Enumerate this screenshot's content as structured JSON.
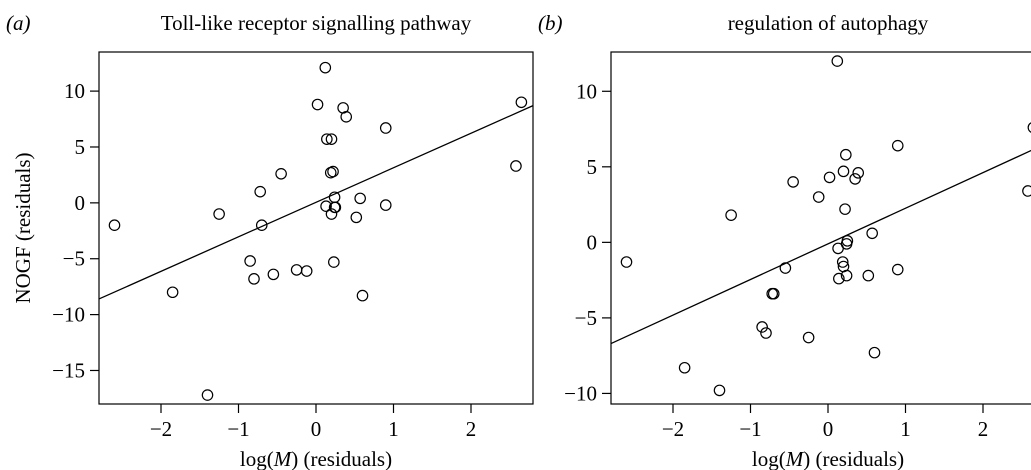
{
  "chart_data": [
    {
      "type": "scatter",
      "panel_label": "(a)",
      "title": "Toll-like receptor signalling pathway",
      "xlabel": "log(M) (residuals)",
      "ylabel": "NOGF (residuals)",
      "xlim": [
        -2.8,
        2.8
      ],
      "ylim": [
        -18,
        13.5
      ],
      "xticks": [
        -2,
        -1,
        0,
        1,
        2
      ],
      "yticks": [
        -15,
        -10,
        -5,
        0,
        5,
        10
      ],
      "grid": false,
      "points": [
        {
          "x": -2.6,
          "y": -2.0
        },
        {
          "x": -1.85,
          "y": -8.0
        },
        {
          "x": -1.4,
          "y": -17.2
        },
        {
          "x": -1.25,
          "y": -1.0
        },
        {
          "x": -0.85,
          "y": -5.2
        },
        {
          "x": -0.8,
          "y": -6.8
        },
        {
          "x": -0.72,
          "y": 1.0
        },
        {
          "x": -0.7,
          "y": -2.0
        },
        {
          "x": -0.55,
          "y": -6.4
        },
        {
          "x": -0.45,
          "y": 2.6
        },
        {
          "x": -0.25,
          "y": -6.0
        },
        {
          "x": -0.12,
          "y": -6.1
        },
        {
          "x": 0.02,
          "y": 8.8
        },
        {
          "x": 0.12,
          "y": 12.1
        },
        {
          "x": 0.14,
          "y": 5.7
        },
        {
          "x": 0.13,
          "y": -0.3
        },
        {
          "x": 0.2,
          "y": 5.7
        },
        {
          "x": 0.19,
          "y": 2.7
        },
        {
          "x": 0.22,
          "y": 2.8
        },
        {
          "x": 0.2,
          "y": -1.0
        },
        {
          "x": 0.24,
          "y": -0.4
        },
        {
          "x": 0.25,
          "y": -0.4
        },
        {
          "x": 0.24,
          "y": 0.5
        },
        {
          "x": 0.23,
          "y": -5.3
        },
        {
          "x": 0.35,
          "y": 8.5
        },
        {
          "x": 0.39,
          "y": 7.7
        },
        {
          "x": 0.52,
          "y": -1.3
        },
        {
          "x": 0.57,
          "y": 0.4
        },
        {
          "x": 0.6,
          "y": -8.3
        },
        {
          "x": 0.9,
          "y": 6.7
        },
        {
          "x": 0.9,
          "y": -0.2
        },
        {
          "x": 2.58,
          "y": 3.3
        },
        {
          "x": 2.65,
          "y": 9.0
        }
      ],
      "fit_line": {
        "x": [
          -2.8,
          2.8
        ],
        "y": [
          -8.6,
          8.7
        ]
      }
    },
    {
      "type": "scatter",
      "panel_label": "(b)",
      "title": "regulation of autophagy",
      "xlabel": "log(M) (residuals)",
      "ylabel": "",
      "xlim": [
        -2.8,
        2.8
      ],
      "ylim": [
        -10.7,
        12.6
      ],
      "xticks": [
        -2,
        -1,
        0,
        1,
        2
      ],
      "yticks": [
        -10,
        -5,
        0,
        5,
        10
      ],
      "grid": false,
      "points": [
        {
          "x": -2.6,
          "y": -1.3
        },
        {
          "x": -1.85,
          "y": -8.3
        },
        {
          "x": -1.4,
          "y": -9.8
        },
        {
          "x": -1.25,
          "y": 1.8
        },
        {
          "x": -0.85,
          "y": -5.6
        },
        {
          "x": -0.8,
          "y": -6.0
        },
        {
          "x": -0.72,
          "y": -3.4
        },
        {
          "x": -0.7,
          "y": -3.4
        },
        {
          "x": -0.55,
          "y": -1.7
        },
        {
          "x": -0.45,
          "y": 4.0
        },
        {
          "x": -0.25,
          "y": -6.3
        },
        {
          "x": -0.12,
          "y": 3.0
        },
        {
          "x": 0.02,
          "y": 4.3
        },
        {
          "x": 0.12,
          "y": 12.0
        },
        {
          "x": 0.14,
          "y": -2.4
        },
        {
          "x": 0.13,
          "y": -0.4
        },
        {
          "x": 0.2,
          "y": 4.7
        },
        {
          "x": 0.19,
          "y": -1.3
        },
        {
          "x": 0.22,
          "y": 2.2
        },
        {
          "x": 0.2,
          "y": -1.6
        },
        {
          "x": 0.24,
          "y": -0.1
        },
        {
          "x": 0.25,
          "y": 0.1
        },
        {
          "x": 0.24,
          "y": -2.2
        },
        {
          "x": 0.23,
          "y": 5.8
        },
        {
          "x": 0.35,
          "y": 4.2
        },
        {
          "x": 0.39,
          "y": 4.6
        },
        {
          "x": 0.52,
          "y": -2.2
        },
        {
          "x": 0.57,
          "y": 0.6
        },
        {
          "x": 0.6,
          "y": -7.3
        },
        {
          "x": 0.9,
          "y": 6.4
        },
        {
          "x": 0.9,
          "y": -1.8
        },
        {
          "x": 2.58,
          "y": 3.4
        },
        {
          "x": 2.65,
          "y": 7.6
        }
      ],
      "fit_line": {
        "x": [
          -2.8,
          2.8
        ],
        "y": [
          -6.7,
          6.5
        ]
      }
    }
  ]
}
